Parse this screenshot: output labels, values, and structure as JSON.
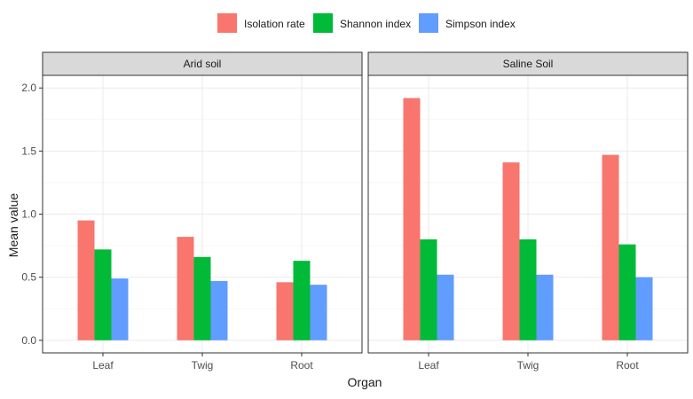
{
  "chart_data": {
    "type": "bar",
    "xlabel": "Organ",
    "ylabel": "Mean value",
    "ylim": [
      -0.1,
      2.1
    ],
    "yticks": [
      "0.0",
      "0.5",
      "1.0",
      "1.5",
      "2.0"
    ],
    "ytick_values": [
      0.0,
      0.5,
      1.0,
      1.5,
      2.0
    ],
    "grid": true,
    "legend_position": "top",
    "categories": [
      "Leaf",
      "Twig",
      "Root"
    ],
    "series_meta": [
      {
        "name": "Isolation rate",
        "color": "#F8766D"
      },
      {
        "name": "Shannon index",
        "color": "#00BA38"
      },
      {
        "name": "Simpson index",
        "color": "#619CFF"
      }
    ],
    "panels": [
      {
        "title": "Arid soil",
        "values": [
          [
            0.95,
            0.82,
            0.46
          ],
          [
            0.72,
            0.66,
            0.63
          ],
          [
            0.49,
            0.47,
            0.44
          ]
        ]
      },
      {
        "title": "Saline Soil",
        "values": [
          [
            1.92,
            1.41,
            1.47
          ],
          [
            0.8,
            0.8,
            0.76
          ],
          [
            0.52,
            0.52,
            0.5
          ]
        ]
      }
    ]
  }
}
